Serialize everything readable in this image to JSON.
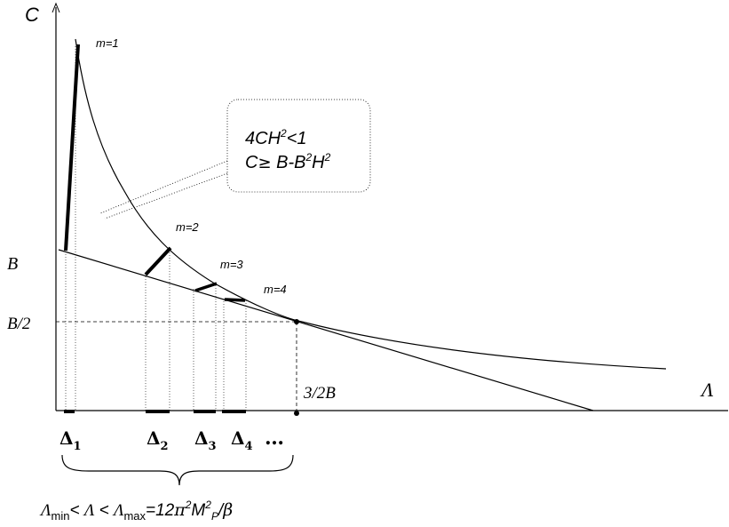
{
  "axes": {
    "y_label": "C",
    "x_label": "Λ"
  },
  "labels": {
    "b": "B",
    "b_half": "B/2",
    "three_half_b": "3/2B",
    "m1": "m=1",
    "m2": "m=2",
    "m3": "m=3",
    "m4": "m=4"
  },
  "constraint_box": {
    "line1_base": "4CH",
    "line1_sup": "2",
    "line1_tail": "<1",
    "line2_a": "C",
    "line2_geq": "≥",
    "line2_b": " B-B",
    "line2_sup1": "2",
    "line2_c": "H",
    "line2_sup2": "2"
  },
  "intervals": {
    "delta": "Δ",
    "sub1": "1",
    "sub2": "2",
    "sub3": "3",
    "sub4": "4",
    "ellipsis": "…"
  },
  "range_formula": {
    "lambda": "Λ",
    "min_sub": "min",
    "lt1": "< ",
    "lambda2": "Λ",
    "lt2": " < ",
    "lambda3": "Λ",
    "max_sub": "max",
    "eq": "=12",
    "pi": "π",
    "sup_a": "2",
    "m": "M",
    "sup_b": "2",
    "p_sub": "P",
    "slash": "/",
    "beta": "β"
  }
}
